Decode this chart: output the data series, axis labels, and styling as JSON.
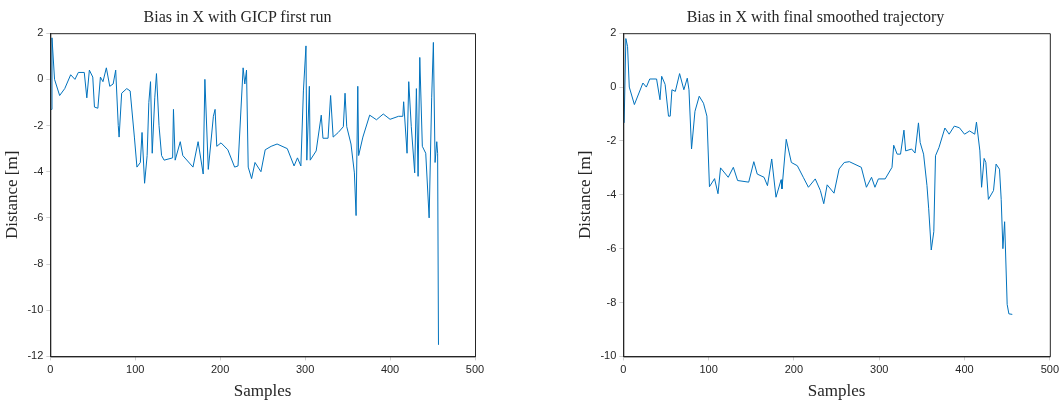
{
  "chart_data": [
    {
      "type": "line",
      "title": "Bias in X with GICP first run",
      "xlabel": "Samples",
      "ylabel": "Distance [m]",
      "xlim": [
        0,
        500
      ],
      "xticks": [
        0,
        100,
        200,
        300,
        400,
        500
      ],
      "ylim": [
        -12,
        2
      ],
      "yticks": [
        -12,
        -10,
        -8,
        -6,
        -4,
        -2,
        0,
        2
      ],
      "grid": false,
      "legend": false,
      "x": [
        1,
        2,
        5,
        11,
        17,
        24,
        29,
        33,
        40,
        43,
        46,
        50,
        52,
        56,
        59,
        62,
        66,
        70,
        74,
        77,
        80,
        81,
        84,
        90,
        94,
        99,
        102,
        106,
        108,
        111,
        114,
        116,
        118,
        120,
        123,
        125,
        128,
        131,
        134,
        144,
        145,
        147,
        153,
        156,
        168,
        174,
        180,
        182,
        186,
        192,
        194,
        196,
        201,
        209,
        217,
        221,
        227,
        229,
        231,
        233,
        237,
        241,
        248,
        253,
        260,
        267,
        279,
        287,
        291,
        295,
        298,
        301,
        302,
        305,
        306,
        313,
        319,
        321,
        327,
        330,
        333,
        339,
        345,
        347,
        349,
        354,
        358,
        360,
        362,
        363,
        368,
        376,
        384,
        392,
        400,
        410,
        415,
        416,
        420,
        422,
        425,
        429,
        431,
        433,
        435,
        438,
        442,
        446,
        449,
        451,
        453,
        455,
        456,
        457
      ],
      "series": [
        {
          "color": "#0072bd",
          "values": [
            -1.3,
            1.8,
            0,
            -0.7,
            -0.4,
            0.2,
            0,
            0.3,
            0.3,
            -0.8,
            0.4,
            0.1,
            -1.2,
            -1.25,
            0.1,
            -0.1,
            0.5,
            -0.3,
            -0.2,
            0.4,
            -2,
            -2.5,
            -0.6,
            -0.4,
            -0.5,
            -2.5,
            -3.8,
            -3.6,
            -2.3,
            -4.5,
            -3.3,
            -1,
            -0.1,
            -3.2,
            -0.8,
            0.25,
            -2,
            -3.3,
            -3.5,
            -3.4,
            -1.3,
            -3.5,
            -2.7,
            -3.3,
            -3.8,
            -2.7,
            -4.1,
            0,
            -3.9,
            -1.6,
            -1.3,
            -2.9,
            -2.75,
            -3.05,
            -3.8,
            -3.75,
            0.5,
            -0.2,
            0.4,
            -3.8,
            -4.3,
            -3.6,
            -4,
            -3.05,
            -2.9,
            -2.8,
            -3,
            -3.75,
            -3.4,
            -3.75,
            -0.5,
            1.45,
            -3.5,
            -0.3,
            -3.5,
            -3.1,
            -1.55,
            -2.55,
            -2.55,
            -0.7,
            -2.5,
            -2.3,
            -2.05,
            -0.6,
            -2.05,
            -2.8,
            -4.05,
            -5.9,
            -0.3,
            -3.3,
            -2.5,
            -1.55,
            -1.75,
            -1.5,
            -1.73,
            -1.6,
            -1.6,
            -0.97,
            -3.2,
            -0.1,
            -2.05,
            -4.05,
            -0.4,
            -4.2,
            0.95,
            -2.9,
            -3.2,
            -6,
            -0.8,
            1.6,
            -3.6,
            -2.7,
            -3.2,
            -11.5
          ]
        }
      ]
    },
    {
      "type": "line",
      "title": "Bias in X with final smoothed trajectory",
      "xlabel": "Samples",
      "ylabel": "Distance [m]",
      "xlim": [
        0,
        500
      ],
      "xticks": [
        0,
        100,
        200,
        300,
        400,
        500
      ],
      "ylim": [
        -10,
        2
      ],
      "yticks": [
        -10,
        -8,
        -6,
        -4,
        -2,
        0,
        2
      ],
      "grid": false,
      "legend": false,
      "x": [
        1,
        3,
        5,
        7,
        13,
        23,
        27,
        31,
        39,
        43,
        45,
        49,
        53,
        55,
        57,
        61,
        66,
        71,
        75,
        77,
        80,
        84,
        89,
        94,
        98,
        101,
        107,
        111,
        114,
        123,
        129,
        134,
        147,
        153,
        157,
        165,
        169,
        174,
        179,
        185,
        186,
        191,
        197,
        204,
        211,
        217,
        225,
        231,
        235,
        239,
        247,
        253,
        259,
        265,
        279,
        285,
        291,
        295,
        299,
        307,
        315,
        317,
        321,
        325,
        329,
        331,
        338,
        342,
        346,
        348,
        352,
        356,
        358,
        361,
        364,
        366,
        370,
        377,
        382,
        388,
        394,
        400,
        406,
        412,
        414,
        418,
        420,
        423,
        425,
        428,
        434,
        437,
        441,
        443,
        445,
        447,
        450,
        452,
        456
      ],
      "series": [
        {
          "color": "#0072bd",
          "values": [
            -1.33,
            1.8,
            1.5,
            0,
            -0.65,
            0.15,
            0,
            0.3,
            0.3,
            -0.47,
            0.4,
            0.1,
            -1.08,
            -1.08,
            -0.1,
            -0.16,
            0.5,
            -0.1,
            0.33,
            -0.1,
            -2.3,
            -0.9,
            -0.34,
            -0.6,
            -1.08,
            -3.7,
            -3.4,
            -3.96,
            -3,
            -3.35,
            -2.98,
            -3.47,
            -3.53,
            -2.77,
            -3.23,
            -3.35,
            -3.66,
            -2.67,
            -4.09,
            -3.44,
            -3.78,
            -1.94,
            -2.8,
            -2.92,
            -3.35,
            -3.72,
            -3.41,
            -3.84,
            -4.33,
            -3.63,
            -3.94,
            -3.04,
            -2.8,
            -2.77,
            -2.98,
            -3.72,
            -3.35,
            -3.72,
            -3.41,
            -3.41,
            -2.98,
            -2.16,
            -2.49,
            -2.49,
            -1.6,
            -2.37,
            -2.3,
            -2.45,
            -1.33,
            -2.06,
            -2.49,
            -3.66,
            -4.52,
            -6.05,
            -5.37,
            -2.55,
            -2.25,
            -1.52,
            -1.75,
            -1.45,
            -1.51,
            -1.75,
            -1.63,
            -1.75,
            -1.3,
            -2.37,
            -3.72,
            -2.65,
            -2.8,
            -4.17,
            -3.84,
            -2.86,
            -3.05,
            -4.17,
            -6,
            -5,
            -8.07,
            -8.42,
            -8.44
          ]
        }
      ]
    }
  ]
}
